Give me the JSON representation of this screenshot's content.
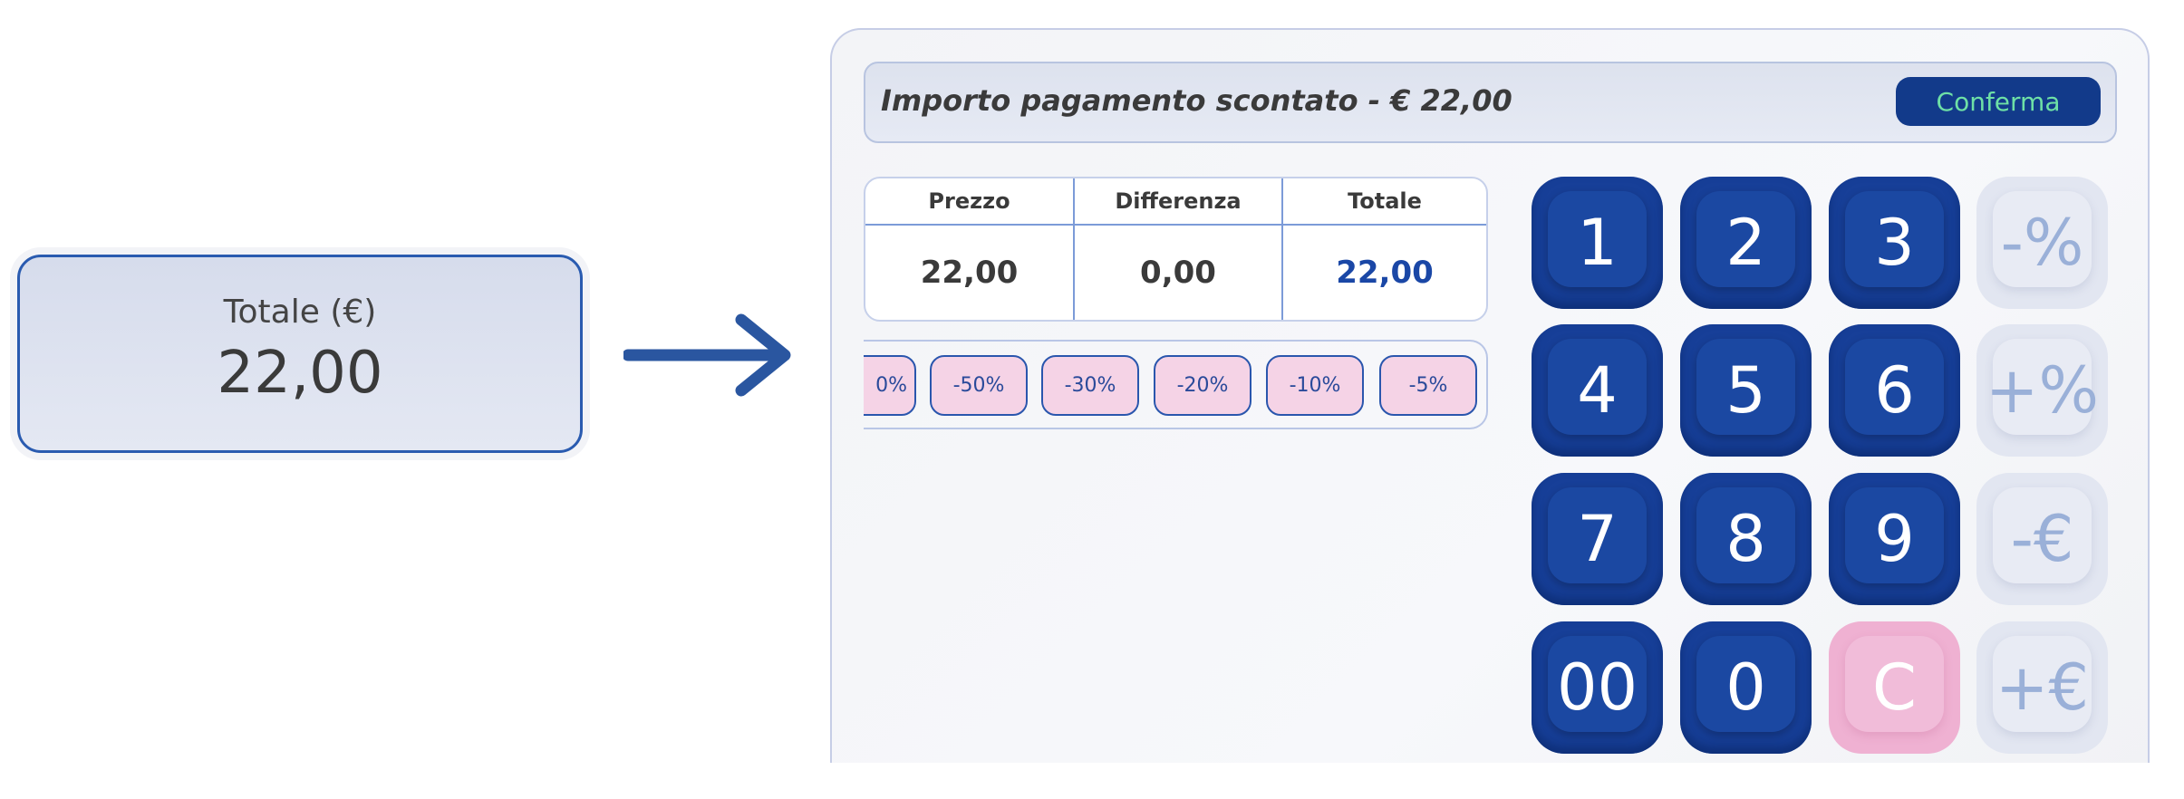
{
  "total_card": {
    "label": "Totale (€)",
    "value": "22,00"
  },
  "panel": {
    "title": "Importo pagamento scontato - € 22,00",
    "confirm_label": "Conferma",
    "table": {
      "headers": [
        "Prezzo",
        "Differenza",
        "Totale"
      ],
      "values": [
        "22,00",
        "0,00",
        "22,00"
      ]
    },
    "discount_chips": [
      "0%",
      "-50%",
      "-30%",
      "-20%",
      "-10%",
      "-5%"
    ],
    "keypad": [
      [
        "1",
        "2",
        "3",
        "-%"
      ],
      [
        "4",
        "5",
        "6",
        "+%"
      ],
      [
        "7",
        "8",
        "9",
        "-€"
      ],
      [
        "00",
        "0",
        "C",
        "+€"
      ]
    ]
  },
  "colors": {
    "primary": "#173f98",
    "confirm_text": "#6ee0a6",
    "chip_bg": "#f5d3e6",
    "clear_key": "#efb1d2"
  }
}
